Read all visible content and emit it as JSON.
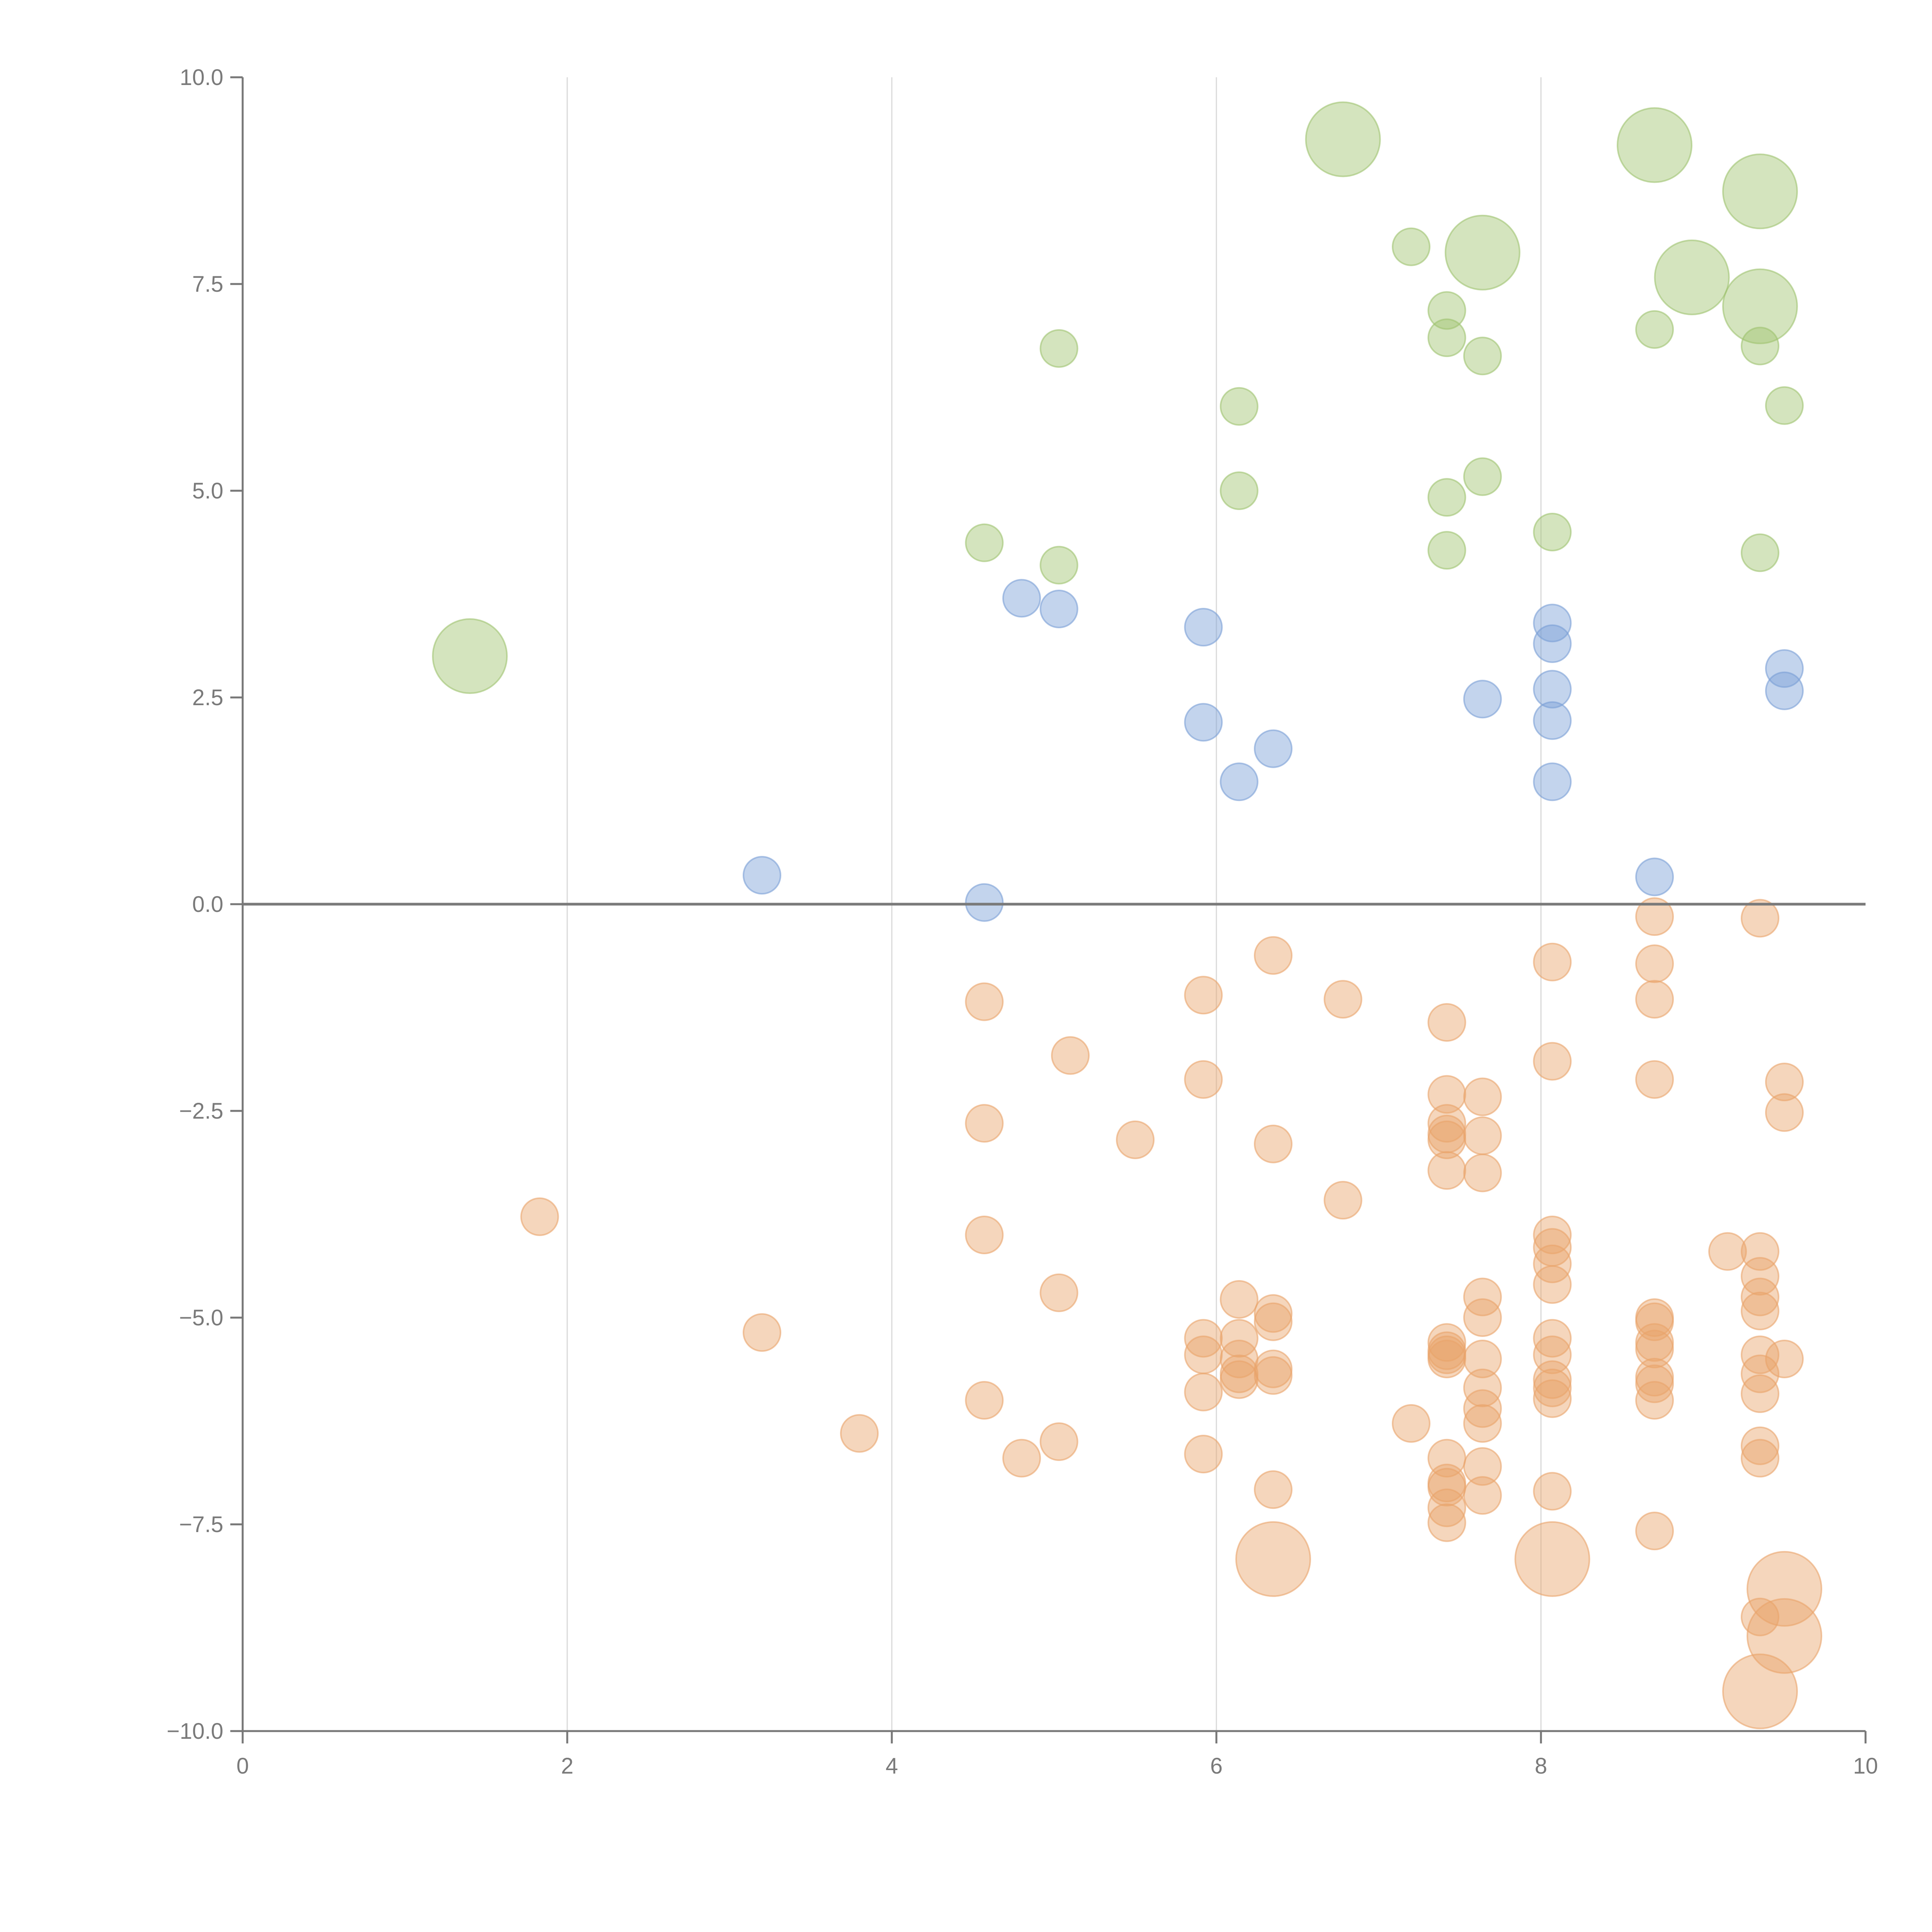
{
  "chart_data": {
    "type": "scatter",
    "title": "",
    "xlabel": "",
    "ylabel": "",
    "xlim": [
      0,
      10
    ],
    "ylim": [
      -10,
      10
    ],
    "grid": "vertical",
    "legend": "none",
    "x_ticks": [
      "0",
      "2",
      "4",
      "6",
      "8",
      "10"
    ],
    "x_tick_values": [
      0,
      2,
      4,
      6,
      8,
      10
    ],
    "y_ticks": [
      "10.0",
      "7.5",
      "5.0",
      "2.5",
      "0.0",
      "−2.5",
      "−5.0",
      "−7.5",
      "−10.0"
    ],
    "y_tick_values": [
      10,
      7.5,
      5,
      2.5,
      0,
      -2.5,
      -5,
      -7.5,
      -10
    ],
    "series": [
      {
        "name": "green",
        "color": "#9fc36f",
        "points": [
          [
            1.4,
            3.0,
            3
          ],
          [
            4.57,
            4.37,
            1
          ],
          [
            5.03,
            4.1,
            1
          ],
          [
            5.03,
            6.72,
            1
          ],
          [
            6.14,
            6.02,
            1
          ],
          [
            6.14,
            5.0,
            1
          ],
          [
            6.78,
            9.25,
            3
          ],
          [
            7.2,
            7.95,
            1
          ],
          [
            7.42,
            7.18,
            1
          ],
          [
            7.42,
            6.85,
            1
          ],
          [
            7.42,
            4.92,
            1
          ],
          [
            7.42,
            4.28,
            1
          ],
          [
            7.64,
            7.88,
            3
          ],
          [
            7.64,
            6.63,
            1
          ],
          [
            7.64,
            5.17,
            1
          ],
          [
            8.07,
            4.5,
            1
          ],
          [
            8.7,
            9.18,
            3
          ],
          [
            8.7,
            6.95,
            1
          ],
          [
            8.93,
            7.58,
            3
          ],
          [
            9.35,
            8.62,
            3
          ],
          [
            9.35,
            7.23,
            3
          ],
          [
            9.35,
            6.75,
            1
          ],
          [
            9.5,
            6.03,
            1
          ],
          [
            9.35,
            4.25,
            1
          ]
        ]
      },
      {
        "name": "blue",
        "color": "#7a9fd6",
        "points": [
          [
            3.2,
            0.35,
            1
          ],
          [
            4.57,
            0.02,
            1
          ],
          [
            4.8,
            3.7,
            1
          ],
          [
            5.03,
            3.57,
            1
          ],
          [
            5.92,
            3.35,
            1
          ],
          [
            5.92,
            2.2,
            1
          ],
          [
            6.14,
            1.48,
            1
          ],
          [
            6.35,
            1.88,
            1
          ],
          [
            7.64,
            2.48,
            1
          ],
          [
            8.07,
            3.4,
            1
          ],
          [
            8.07,
            3.15,
            1
          ],
          [
            8.07,
            2.6,
            1
          ],
          [
            8.07,
            2.22,
            1
          ],
          [
            8.07,
            1.48,
            1
          ],
          [
            8.7,
            0.33,
            1
          ],
          [
            9.5,
            2.85,
            1
          ],
          [
            9.5,
            2.58,
            1
          ]
        ]
      },
      {
        "name": "orange",
        "color": "#e9a46a",
        "points": [
          [
            1.83,
            -3.78,
            1
          ],
          [
            3.2,
            -5.18,
            1
          ],
          [
            3.8,
            -6.4,
            1
          ],
          [
            4.57,
            -1.18,
            1
          ],
          [
            4.57,
            -2.65,
            1
          ],
          [
            4.57,
            -4.0,
            1
          ],
          [
            4.57,
            -6.0,
            1
          ],
          [
            4.8,
            -6.7,
            1
          ],
          [
            5.03,
            -4.7,
            1
          ],
          [
            5.03,
            -6.5,
            1
          ],
          [
            5.1,
            -1.83,
            1
          ],
          [
            5.5,
            -2.85,
            1
          ],
          [
            5.92,
            -1.1,
            1
          ],
          [
            5.92,
            -2.12,
            1
          ],
          [
            5.92,
            -5.25,
            1
          ],
          [
            5.92,
            -5.45,
            1
          ],
          [
            5.92,
            -5.9,
            1
          ],
          [
            5.92,
            -6.65,
            1
          ],
          [
            6.14,
            -4.78,
            1
          ],
          [
            6.14,
            -5.25,
            1
          ],
          [
            6.14,
            -5.5,
            1
          ],
          [
            6.14,
            -5.68,
            1
          ],
          [
            6.14,
            -5.75,
            1
          ],
          [
            6.35,
            -0.62,
            1
          ],
          [
            6.35,
            -2.9,
            1
          ],
          [
            6.35,
            -4.95,
            1
          ],
          [
            6.35,
            -5.05,
            1
          ],
          [
            6.35,
            -5.62,
            1
          ],
          [
            6.35,
            -5.7,
            1
          ],
          [
            6.35,
            -7.08,
            1
          ],
          [
            6.35,
            -7.92,
            3
          ],
          [
            6.78,
            -1.15,
            1
          ],
          [
            6.78,
            -3.58,
            1
          ],
          [
            7.2,
            -6.28,
            1
          ],
          [
            7.42,
            -1.43,
            1
          ],
          [
            7.42,
            -2.3,
            1
          ],
          [
            7.42,
            -2.65,
            1
          ],
          [
            7.42,
            -2.78,
            1
          ],
          [
            7.42,
            -2.85,
            1
          ],
          [
            7.42,
            -3.22,
            1
          ],
          [
            7.42,
            -5.3,
            1
          ],
          [
            7.42,
            -5.4,
            1
          ],
          [
            7.42,
            -5.45,
            1
          ],
          [
            7.42,
            -5.5,
            1
          ],
          [
            7.42,
            -6.7,
            1
          ],
          [
            7.42,
            -7.0,
            1
          ],
          [
            7.42,
            -7.05,
            1
          ],
          [
            7.42,
            -7.3,
            1
          ],
          [
            7.42,
            -7.48,
            1
          ],
          [
            7.64,
            -2.33,
            1
          ],
          [
            7.64,
            -2.8,
            1
          ],
          [
            7.64,
            -3.25,
            1
          ],
          [
            7.64,
            -4.75,
            1
          ],
          [
            7.64,
            -5.0,
            1
          ],
          [
            7.64,
            -5.5,
            1
          ],
          [
            7.64,
            -5.85,
            1
          ],
          [
            7.64,
            -6.1,
            1
          ],
          [
            7.64,
            -6.28,
            1
          ],
          [
            7.64,
            -6.8,
            1
          ],
          [
            7.64,
            -7.15,
            1
          ],
          [
            8.07,
            -0.7,
            1
          ],
          [
            8.07,
            -1.9,
            1
          ],
          [
            8.07,
            -4.0,
            1
          ],
          [
            8.07,
            -4.15,
            1
          ],
          [
            8.07,
            -4.35,
            1
          ],
          [
            8.07,
            -4.6,
            1
          ],
          [
            8.07,
            -5.25,
            1
          ],
          [
            8.07,
            -5.45,
            1
          ],
          [
            8.07,
            -5.75,
            1
          ],
          [
            8.07,
            -5.85,
            1
          ],
          [
            8.07,
            -5.98,
            1
          ],
          [
            8.07,
            -7.1,
            1
          ],
          [
            8.07,
            -7.92,
            3
          ],
          [
            8.7,
            -0.15,
            1
          ],
          [
            8.7,
            -0.72,
            1
          ],
          [
            8.7,
            -1.15,
            1
          ],
          [
            8.7,
            -2.12,
            1
          ],
          [
            8.7,
            -5.0,
            1
          ],
          [
            8.7,
            -5.05,
            1
          ],
          [
            8.7,
            -5.3,
            1
          ],
          [
            8.7,
            -5.38,
            1
          ],
          [
            8.7,
            -5.72,
            1
          ],
          [
            8.7,
            -5.8,
            1
          ],
          [
            8.7,
            -6.0,
            1
          ],
          [
            8.7,
            -7.58,
            1
          ],
          [
            9.15,
            -4.2,
            1
          ],
          [
            9.35,
            -0.17,
            1
          ],
          [
            9.35,
            -4.2,
            1
          ],
          [
            9.35,
            -4.5,
            1
          ],
          [
            9.35,
            -4.75,
            1
          ],
          [
            9.35,
            -4.92,
            1
          ],
          [
            9.35,
            -5.45,
            1
          ],
          [
            9.35,
            -5.68,
            1
          ],
          [
            9.35,
            -5.92,
            1
          ],
          [
            9.35,
            -6.55,
            1
          ],
          [
            9.35,
            -6.7,
            1
          ],
          [
            9.35,
            -8.62,
            1
          ],
          [
            9.35,
            -9.52,
            3
          ],
          [
            9.5,
            -2.15,
            1
          ],
          [
            9.5,
            -2.52,
            1
          ],
          [
            9.5,
            -5.5,
            1
          ],
          [
            9.5,
            -8.28,
            3
          ],
          [
            9.5,
            -8.85,
            3
          ]
        ]
      }
    ]
  }
}
